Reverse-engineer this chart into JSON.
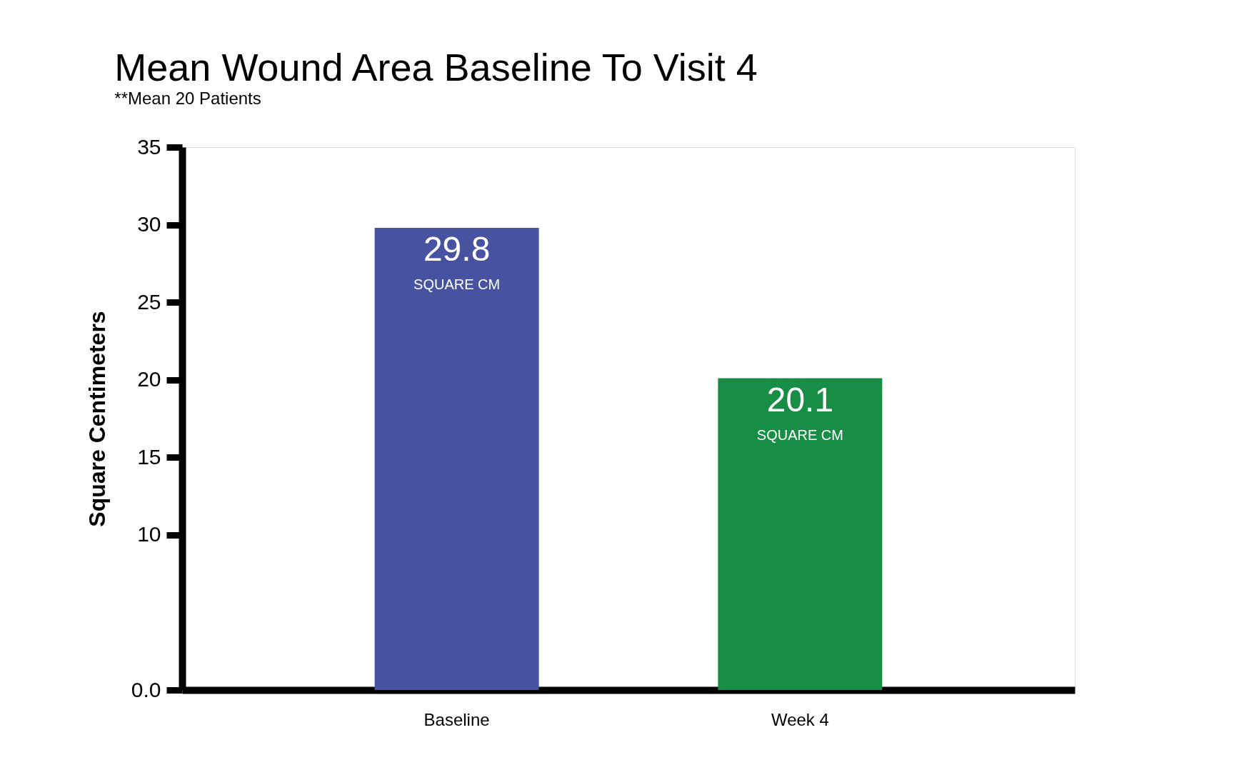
{
  "chart_data": {
    "type": "bar",
    "title": "Mean Wound Area Baseline To Visit 4",
    "subtitle": "**Mean 20 Patients",
    "ylabel": "Square Centimeters",
    "categories": [
      "Baseline",
      "Week 4"
    ],
    "values": [
      29.8,
      20.1
    ],
    "colors": [
      "#4752a0",
      "#178d45"
    ],
    "ylim": [
      0,
      35
    ],
    "yticks": [
      {
        "value": 0,
        "label": "0.0"
      },
      10,
      15,
      20,
      25,
      30,
      35
    ],
    "grid": false,
    "data_labels": true,
    "annotations": [
      "SQUARE CM",
      "SQUARE CM"
    ]
  }
}
